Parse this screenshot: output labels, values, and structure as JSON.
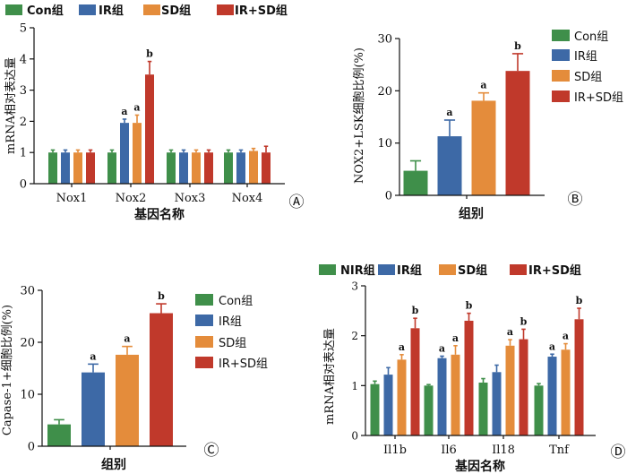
{
  "chart_data": [
    {
      "panel": "A",
      "type": "bar",
      "categories": [
        "Nox1",
        "Nox2",
        "Nox3",
        "Nox4"
      ],
      "series": [
        {
          "name": "Con组",
          "color": "#3f8f4a",
          "values": [
            1.0,
            1.0,
            1.0,
            1.0
          ],
          "errors": [
            0.08,
            0.08,
            0.08,
            0.08
          ],
          "labels": [
            "",
            "",
            "",
            ""
          ]
        },
        {
          "name": "IR组",
          "color": "#3d69a6",
          "values": [
            1.0,
            1.95,
            1.0,
            1.0
          ],
          "errors": [
            0.08,
            0.12,
            0.08,
            0.08
          ],
          "labels": [
            "",
            "a",
            "",
            ""
          ]
        },
        {
          "name": "SD组",
          "color": "#e48c3b",
          "values": [
            1.0,
            1.95,
            1.0,
            1.05
          ],
          "errors": [
            0.08,
            0.25,
            0.08,
            0.08
          ],
          "labels": [
            "",
            "a",
            "",
            ""
          ]
        },
        {
          "name": "IR+SD组",
          "color": "#c0392b",
          "values": [
            1.0,
            3.5,
            1.0,
            1.0
          ],
          "errors": [
            0.08,
            0.42,
            0.08,
            0.2
          ],
          "labels": [
            "",
            "b",
            "",
            ""
          ]
        }
      ],
      "xlabel": "基因名称",
      "ylabel": "mRNA相对表达量",
      "ylim": [
        0,
        5
      ],
      "yticks": [
        "0",
        "1",
        "2",
        "3",
        "4",
        "5"
      ],
      "legend": "top",
      "panel_mark": "Ⓐ"
    },
    {
      "panel": "B",
      "type": "bar",
      "categories": [
        "组别"
      ],
      "series": [
        {
          "name": "Con组",
          "color": "#3f8f4a",
          "values": [
            4.7
          ],
          "errors": [
            1.9
          ],
          "labels": [
            ""
          ]
        },
        {
          "name": "IR组",
          "color": "#3d69a6",
          "values": [
            11.3
          ],
          "errors": [
            3.1
          ],
          "labels": [
            "a"
          ]
        },
        {
          "name": "SD组",
          "color": "#e48c3b",
          "values": [
            18.1
          ],
          "errors": [
            1.5
          ],
          "labels": [
            "a"
          ]
        },
        {
          "name": "IR+SD组",
          "color": "#c0392b",
          "values": [
            23.8
          ],
          "errors": [
            3.3
          ],
          "labels": [
            "b"
          ]
        }
      ],
      "xlabel": "组别",
      "ylabel": "NOX2+LSK细胞比例(%)",
      "ylim": [
        0,
        30
      ],
      "yticks": [
        "0",
        "10",
        "20",
        "30"
      ],
      "legend": "right",
      "panel_mark": "Ⓑ"
    },
    {
      "panel": "C",
      "type": "bar",
      "categories": [
        "组别"
      ],
      "series": [
        {
          "name": "Con组",
          "color": "#3f8f4a",
          "values": [
            4.2
          ],
          "errors": [
            0.9
          ],
          "labels": [
            ""
          ]
        },
        {
          "name": "IR组",
          "color": "#3d69a6",
          "values": [
            14.2
          ],
          "errors": [
            1.6
          ],
          "labels": [
            "a"
          ]
        },
        {
          "name": "SD组",
          "color": "#e48c3b",
          "values": [
            17.6
          ],
          "errors": [
            1.6
          ],
          "labels": [
            "a"
          ]
        },
        {
          "name": "IR+SD组",
          "color": "#c0392b",
          "values": [
            25.6
          ],
          "errors": [
            1.8
          ],
          "labels": [
            "b"
          ]
        }
      ],
      "xlabel": "组别",
      "ylabel": "Capase-1+细胞比例(%)",
      "ylim": [
        0,
        30
      ],
      "yticks": [
        "0",
        "10",
        "20",
        "30"
      ],
      "legend": "right",
      "panel_mark": "Ⓒ"
    },
    {
      "panel": "D",
      "type": "bar",
      "categories": [
        "Il1b",
        "Il6",
        "Il18",
        "Tnf"
      ],
      "series": [
        {
          "name": "NIR组",
          "color": "#3f8f4a",
          "values": [
            1.03,
            1.0,
            1.06,
            1.0
          ],
          "errors": [
            0.06,
            0.02,
            0.08,
            0.04
          ],
          "labels": [
            "",
            "",
            "",
            ""
          ]
        },
        {
          "name": "IR组",
          "color": "#3d69a6",
          "values": [
            1.22,
            1.55,
            1.27,
            1.58
          ],
          "errors": [
            0.14,
            0.04,
            0.14,
            0.05
          ],
          "labels": [
            "",
            "a",
            "",
            "a"
          ]
        },
        {
          "name": "SD组",
          "color": "#e48c3b",
          "values": [
            1.52,
            1.62,
            1.8,
            1.72
          ],
          "errors": [
            0.1,
            0.18,
            0.12,
            0.12
          ],
          "labels": [
            "a",
            "a",
            "a",
            "a"
          ]
        },
        {
          "name": "IR+SD组",
          "color": "#c0392b",
          "values": [
            2.15,
            2.3,
            1.93,
            2.33
          ],
          "errors": [
            0.2,
            0.15,
            0.2,
            0.22
          ],
          "labels": [
            "b",
            "b",
            "b",
            "b"
          ]
        }
      ],
      "xlabel": "基因名称",
      "ylabel": "mRNA相对表达量",
      "ylim": [
        0,
        3
      ],
      "yticks": [
        "0",
        "1",
        "2",
        "3"
      ],
      "legend": "top",
      "panel_mark": "Ⓓ"
    }
  ]
}
